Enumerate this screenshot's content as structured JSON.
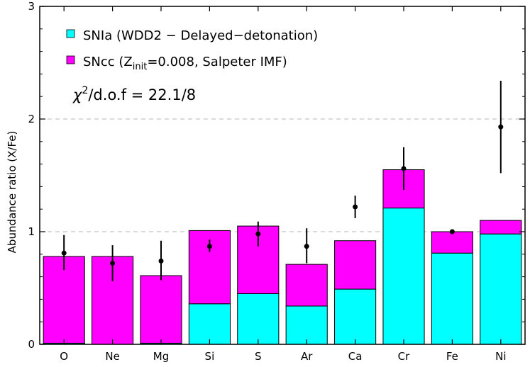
{
  "chart_data": {
    "type": "bar",
    "stacked": true,
    "ylabel": "Abundance ratio (X/Fe)",
    "ylim": [
      0,
      3
    ],
    "yticks": [
      "0",
      "1",
      "2",
      "3"
    ],
    "grid": "dashed horizontal at y=1 and y=2",
    "legend_position": "top-left",
    "categories": [
      "O",
      "Ne",
      "Mg",
      "Si",
      "S",
      "Ar",
      "Ca",
      "Cr",
      "Fe",
      "Ni"
    ],
    "series": [
      {
        "name": "SNIa (WDD2 − Delayed−detonation)",
        "color": "#00ffff",
        "values": [
          0.01,
          0.0,
          0.01,
          0.36,
          0.45,
          0.34,
          0.49,
          1.21,
          0.81,
          0.98
        ]
      },
      {
        "name": "SNcc (Z_init=0.008, Salpeter IMF)",
        "name_parts": {
          "pre": "SNcc (Z",
          "sub": "init",
          "post": "=0.008, Salpeter IMF)"
        },
        "color": "#ff00ff",
        "values": [
          0.77,
          0.78,
          0.6,
          0.65,
          0.6,
          0.37,
          0.43,
          0.34,
          0.19,
          0.12
        ]
      }
    ],
    "observed": {
      "values": [
        0.81,
        0.72,
        0.74,
        0.87,
        0.98,
        0.87,
        1.22,
        1.56,
        1.0,
        1.93
      ],
      "err_low": [
        0.15,
        0.16,
        0.17,
        0.05,
        0.11,
        0.15,
        0.1,
        0.19,
        0.02,
        0.41
      ],
      "err_high": [
        0.16,
        0.16,
        0.18,
        0.06,
        0.11,
        0.16,
        0.1,
        0.19,
        0.02,
        0.41
      ]
    },
    "annotation": {
      "pre": "χ",
      "sup": "2",
      "post": "/d.o.f = 22.1/8"
    }
  }
}
